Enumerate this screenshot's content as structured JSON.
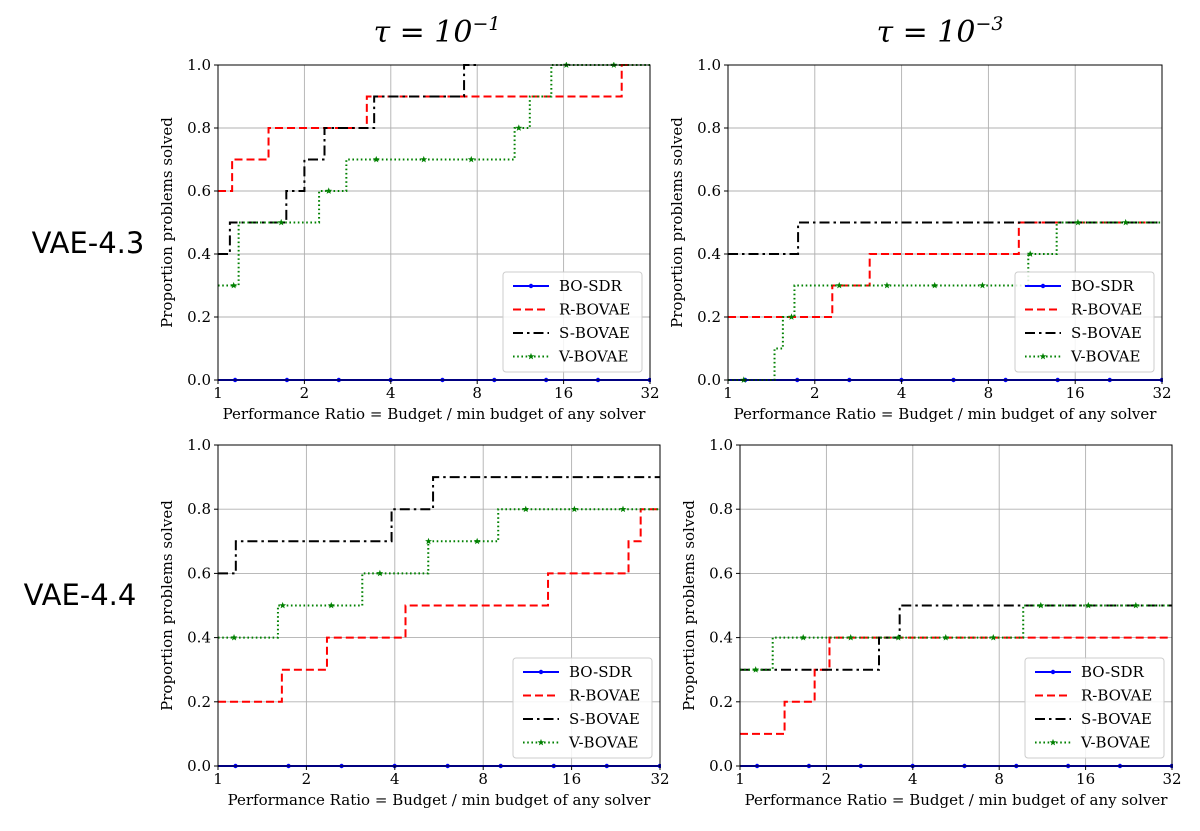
{
  "column_titles": [
    {
      "base": "τ = 10",
      "exp": "−1"
    },
    {
      "base": "τ = 10",
      "exp": "−3"
    }
  ],
  "row_labels": [
    "VAE-4.3",
    "VAE-4.4"
  ],
  "colors": {
    "BO-SDR": "#0000ff",
    "R-BOVAE": "#ff0000",
    "S-BOVAE": "#000000",
    "V-BOVAE": "#008000",
    "grid": "#b0b0b0"
  },
  "chart_data": [
    {
      "type": "line",
      "row": "VAE-4.3",
      "column": "τ = 10^-1",
      "xlabel": "Performance Ratio = Budget / min budget of any solver",
      "ylabel": "Proportion problems solved",
      "xscale": "log2",
      "xlim": [
        1,
        32
      ],
      "ylim": [
        0,
        1
      ],
      "xticks": [
        1,
        2,
        4,
        8,
        16,
        32
      ],
      "xtick_labels": [
        "1",
        "2",
        "4",
        "8",
        "16",
        "32"
      ],
      "yticks": [
        0,
        0.2,
        0.4,
        0.6,
        0.8,
        1.0
      ],
      "ytick_labels": [
        "0.0",
        "0.2",
        "0.4",
        "0.6",
        "0.8",
        "1.0"
      ],
      "grid": true,
      "legend": "lower-right",
      "series": [
        {
          "name": "BO-SDR",
          "x": [
            1,
            32
          ],
          "y": [
            0,
            0
          ]
        },
        {
          "name": "R-BOVAE",
          "x": [
            1,
            1.12,
            1.5,
            3.3,
            25.5,
            28
          ],
          "y": [
            0.6,
            0.7,
            0.8,
            0.9,
            1.0,
            1.0
          ]
        },
        {
          "name": "S-BOVAE",
          "x": [
            1,
            1.1,
            1.73,
            2.0,
            2.35,
            3.5,
            7.2,
            8.1
          ],
          "y": [
            0.4,
            0.5,
            0.6,
            0.7,
            0.8,
            0.9,
            1.0,
            1.0
          ]
        },
        {
          "name": "V-BOVAE",
          "x": [
            1,
            1.18,
            2.25,
            2.8,
            10.8,
            12.2,
            14.5,
            32
          ],
          "y": [
            0.3,
            0.5,
            0.6,
            0.7,
            0.8,
            0.9,
            1.0,
            1.0
          ]
        }
      ]
    },
    {
      "type": "line",
      "row": "VAE-4.3",
      "column": "τ = 10^-3",
      "xlabel": "Performance Ratio = Budget / min budget of any solver",
      "ylabel": "Proportion problems solved",
      "xscale": "log2",
      "xlim": [
        1,
        32
      ],
      "ylim": [
        0,
        1
      ],
      "xticks": [
        1,
        2,
        4,
        8,
        16,
        32
      ],
      "xtick_labels": [
        "1",
        "2",
        "4",
        "8",
        "16",
        "32"
      ],
      "yticks": [
        0,
        0.2,
        0.4,
        0.6,
        0.8,
        1.0
      ],
      "ytick_labels": [
        "0.0",
        "0.2",
        "0.4",
        "0.6",
        "0.8",
        "1.0"
      ],
      "grid": true,
      "legend": "lower-right",
      "series": [
        {
          "name": "BO-SDR",
          "x": [
            1,
            32
          ],
          "y": [
            0,
            0
          ]
        },
        {
          "name": "R-BOVAE",
          "x": [
            1,
            2.3,
            3.1,
            10.2,
            32
          ],
          "y": [
            0.2,
            0.3,
            0.4,
            0.5,
            0.5
          ]
        },
        {
          "name": "S-BOVAE",
          "x": [
            1,
            1.75,
            32
          ],
          "y": [
            0.4,
            0.5,
            0.5
          ]
        },
        {
          "name": "V-BOVAE",
          "x": [
            1,
            1.45,
            1.55,
            1.7,
            11.0,
            13.8,
            32
          ],
          "y": [
            0.0,
            0.1,
            0.2,
            0.3,
            0.4,
            0.5,
            0.5
          ]
        }
      ]
    },
    {
      "type": "line",
      "row": "VAE-4.4",
      "column": "τ = 10^-1",
      "xlabel": "Performance Ratio = Budget / min budget of any solver",
      "ylabel": "Proportion problems solved",
      "xscale": "log2",
      "xlim": [
        1,
        32
      ],
      "ylim": [
        0,
        1
      ],
      "xticks": [
        1,
        2,
        4,
        8,
        16,
        32
      ],
      "xtick_labels": [
        "1",
        "2",
        "4",
        "8",
        "16",
        "32"
      ],
      "yticks": [
        0,
        0.2,
        0.4,
        0.6,
        0.8,
        1.0
      ],
      "ytick_labels": [
        "0.0",
        "0.2",
        "0.4",
        "0.6",
        "0.8",
        "1.0"
      ],
      "grid": true,
      "legend": "lower-right",
      "series": [
        {
          "name": "BO-SDR",
          "x": [
            1,
            32
          ],
          "y": [
            0,
            0
          ]
        },
        {
          "name": "R-BOVAE",
          "x": [
            1,
            1.65,
            2.35,
            4.35,
            13.3,
            25.0,
            27.5,
            32
          ],
          "y": [
            0.2,
            0.3,
            0.4,
            0.5,
            0.6,
            0.7,
            0.8,
            0.8
          ]
        },
        {
          "name": "S-BOVAE",
          "x": [
            1,
            1.15,
            3.9,
            5.4,
            32
          ],
          "y": [
            0.6,
            0.7,
            0.8,
            0.9,
            0.9
          ]
        },
        {
          "name": "V-BOVAE",
          "x": [
            1,
            1.6,
            3.1,
            5.2,
            9.0,
            32
          ],
          "y": [
            0.4,
            0.5,
            0.6,
            0.7,
            0.8,
            0.8
          ]
        }
      ]
    },
    {
      "type": "line",
      "row": "VAE-4.4",
      "column": "τ = 10^-3",
      "xlabel": "Performance Ratio = Budget / min budget of any solver",
      "ylabel": "Proportion problems solved",
      "xscale": "log2",
      "xlim": [
        1,
        32
      ],
      "ylim": [
        0,
        1
      ],
      "xticks": [
        1,
        2,
        4,
        8,
        16,
        32
      ],
      "xtick_labels": [
        "1",
        "2",
        "4",
        "8",
        "16",
        "32"
      ],
      "yticks": [
        0,
        0.2,
        0.4,
        0.6,
        0.8,
        1.0
      ],
      "ytick_labels": [
        "0.0",
        "0.2",
        "0.4",
        "0.6",
        "0.8",
        "1.0"
      ],
      "grid": true,
      "legend": "lower-right",
      "series": [
        {
          "name": "BO-SDR",
          "x": [
            1,
            32
          ],
          "y": [
            0,
            0
          ]
        },
        {
          "name": "R-BOVAE",
          "x": [
            1,
            1.43,
            1.82,
            2.05,
            32
          ],
          "y": [
            0.1,
            0.2,
            0.3,
            0.4,
            0.4
          ]
        },
        {
          "name": "S-BOVAE",
          "x": [
            1,
            3.05,
            3.6,
            32
          ],
          "y": [
            0.3,
            0.4,
            0.5,
            0.5
          ]
        },
        {
          "name": "V-BOVAE",
          "x": [
            1,
            1.3,
            9.7,
            32
          ],
          "y": [
            0.3,
            0.4,
            0.5,
            0.5
          ]
        }
      ]
    }
  ]
}
